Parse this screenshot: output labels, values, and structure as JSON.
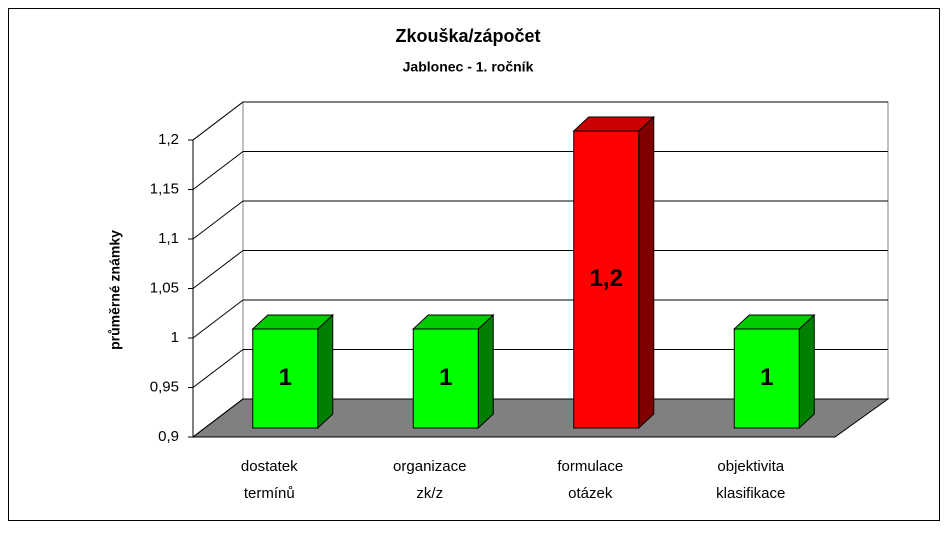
{
  "chart_data": {
    "type": "bar3d",
    "title": "Zkouška/zápočet",
    "subtitle": "Jablonec - 1. ročník",
    "y_label": "průměrné známky",
    "categories": [
      [
        "dostatek",
        "termínů"
      ],
      [
        "organizace",
        "zk/z"
      ],
      [
        "formulace",
        "otázek"
      ],
      [
        "objektivita",
        "klasifikace"
      ]
    ],
    "values": [
      1,
      1,
      1.2,
      1
    ],
    "value_labels": [
      "1",
      "1",
      "1,2",
      "1"
    ],
    "colors": [
      "#00ff00",
      "#00ff00",
      "#ff0000",
      "#00ff00"
    ],
    "ylim": [
      0.9,
      1.2
    ],
    "yticks": [
      {
        "value": 0.9,
        "label": "0,9"
      },
      {
        "value": 0.95,
        "label": "0,95"
      },
      1,
      {
        "value": 1.05,
        "label": "1,05"
      },
      {
        "value": 1.1,
        "label": "1,1"
      },
      {
        "value": 1.15,
        "label": "1,15"
      },
      {
        "value": 1.2,
        "label": "1,2"
      }
    ],
    "grid": true
  }
}
